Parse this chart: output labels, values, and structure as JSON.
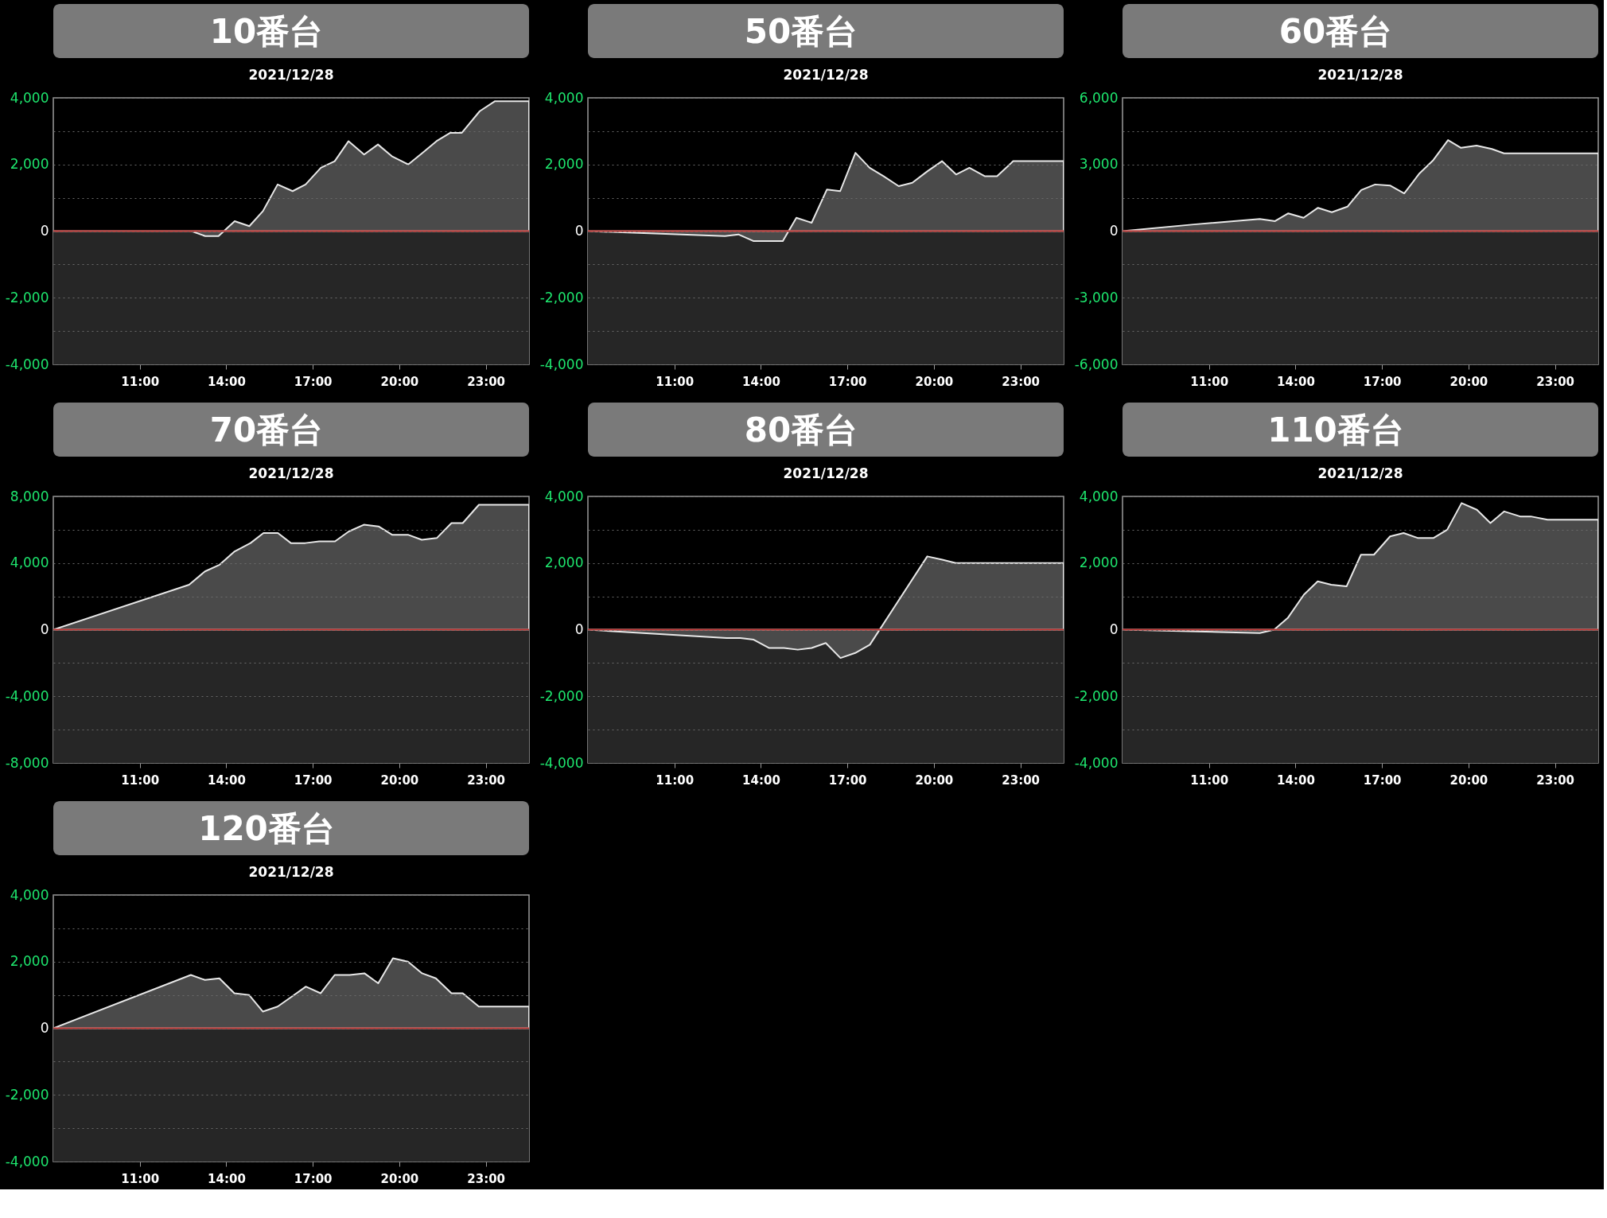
{
  "chart_data": [
    {
      "type": "area",
      "title": "10番台",
      "subtitle": "2021/12/28",
      "color": "#4a4a4a",
      "grid": "y",
      "x": [
        8.0,
        12.79,
        13.27,
        13.73,
        14.29,
        14.8,
        15.27,
        15.78,
        16.3,
        16.75,
        17.28,
        17.76,
        18.24,
        18.78,
        19.26,
        19.74,
        20.31,
        20.81,
        21.29,
        21.77,
        22.17,
        22.79,
        23.32,
        24.5
      ],
      "values": [
        0,
        0,
        -150,
        -150,
        300,
        150,
        600,
        1400,
        1200,
        1400,
        1900,
        2100,
        2700,
        2300,
        2600,
        2250,
        2000,
        2350,
        2700,
        2950,
        2950,
        3600,
        3900,
        3900
      ],
      "xlim": [
        8,
        24.5
      ],
      "xticks": [
        {
          "value": 11,
          "label": "11:00"
        },
        {
          "value": 14,
          "label": "14:00"
        },
        {
          "value": 17,
          "label": "17:00"
        },
        {
          "value": 20,
          "label": "20:00"
        },
        {
          "value": 23,
          "label": "23:00"
        }
      ],
      "ylim": [
        -4000,
        4000
      ],
      "yticks": [
        {
          "value": -4000,
          "label": "-4,000"
        },
        {
          "value": -3000,
          "label": null
        },
        {
          "value": -2000,
          "label": "-2,000"
        },
        {
          "value": -1000,
          "label": null
        },
        {
          "value": 0,
          "label": "0"
        },
        {
          "value": 1000,
          "label": null
        },
        {
          "value": 2000,
          "label": "2,000"
        },
        {
          "value": 3000,
          "label": null
        },
        {
          "value": 4000,
          "label": "4,000"
        }
      ],
      "ref_lines": [
        {
          "axis": "y",
          "value": 0,
          "color": "#b8312f"
        }
      ],
      "bands": [
        {
          "axis": "y",
          "from": -4000,
          "to": 0,
          "color": "#262626"
        }
      ]
    },
    {
      "type": "area",
      "title": "50番台",
      "subtitle": "2021/12/28",
      "color": "#4a4a4a",
      "grid": "y",
      "x": [
        8.0,
        12.75,
        13.22,
        13.75,
        14.76,
        15.23,
        15.76,
        16.29,
        16.75,
        17.28,
        17.77,
        18.25,
        18.78,
        19.25,
        19.78,
        20.28,
        20.77,
        21.23,
        21.76,
        22.19,
        22.75,
        24.5
      ],
      "values": [
        0,
        -150,
        -100,
        -300,
        -300,
        400,
        250,
        1250,
        1200,
        2350,
        1900,
        1650,
        1350,
        1450,
        1800,
        2100,
        1700,
        1900,
        1650,
        1650,
        2100,
        2100
      ],
      "xlim": [
        8,
        24.5
      ],
      "xticks": [
        {
          "value": 11,
          "label": "11:00"
        },
        {
          "value": 14,
          "label": "14:00"
        },
        {
          "value": 17,
          "label": "17:00"
        },
        {
          "value": 20,
          "label": "20:00"
        },
        {
          "value": 23,
          "label": "23:00"
        }
      ],
      "ylim": [
        -4000,
        4000
      ],
      "yticks": [
        {
          "value": -4000,
          "label": "-4,000"
        },
        {
          "value": -3000,
          "label": null
        },
        {
          "value": -2000,
          "label": "-2,000"
        },
        {
          "value": -1000,
          "label": null
        },
        {
          "value": 0,
          "label": "0"
        },
        {
          "value": 1000,
          "label": null
        },
        {
          "value": 2000,
          "label": "2,000"
        },
        {
          "value": 3000,
          "label": null
        },
        {
          "value": 4000,
          "label": "4,000"
        }
      ],
      "ref_lines": [
        {
          "axis": "y",
          "value": 0,
          "color": "#b8312f"
        }
      ],
      "bands": [
        {
          "axis": "y",
          "from": -4000,
          "to": 0,
          "color": "#262626"
        }
      ]
    },
    {
      "type": "area",
      "title": "60番台",
      "subtitle": "2021/12/28",
      "color": "#4a4a4a",
      "grid": "y",
      "x": [
        8.0,
        10.47,
        12.76,
        13.29,
        13.75,
        14.28,
        14.78,
        15.26,
        15.8,
        16.28,
        16.76,
        17.29,
        17.77,
        18.3,
        18.78,
        19.29,
        19.74,
        20.28,
        20.81,
        21.23,
        24.5
      ],
      "values": [
        0,
        300,
        550,
        450,
        800,
        600,
        1050,
        850,
        1100,
        1850,
        2100,
        2050,
        1700,
        2600,
        3200,
        4100,
        3750,
        3850,
        3700,
        3500,
        3500
      ],
      "xlim": [
        8,
        24.5
      ],
      "xticks": [
        {
          "value": 11,
          "label": "11:00"
        },
        {
          "value": 14,
          "label": "14:00"
        },
        {
          "value": 17,
          "label": "17:00"
        },
        {
          "value": 20,
          "label": "20:00"
        },
        {
          "value": 23,
          "label": "23:00"
        }
      ],
      "ylim": [
        -6000,
        6000
      ],
      "yticks": [
        {
          "value": -6000,
          "label": "-6,000"
        },
        {
          "value": -4500,
          "label": null
        },
        {
          "value": -3000,
          "label": "-3,000"
        },
        {
          "value": -1500,
          "label": null
        },
        {
          "value": 0,
          "label": "0"
        },
        {
          "value": 1500,
          "label": null
        },
        {
          "value": 3000,
          "label": "3,000"
        },
        {
          "value": 4500,
          "label": null
        },
        {
          "value": 6000,
          "label": "6,000"
        }
      ],
      "ref_lines": [
        {
          "axis": "y",
          "value": 0,
          "color": "#b8312f"
        }
      ],
      "bands": [
        {
          "axis": "y",
          "from": -6000,
          "to": 0,
          "color": "#262626"
        }
      ]
    },
    {
      "type": "area",
      "title": "70番台",
      "subtitle": "2021/12/28",
      "color": "#4a4a4a",
      "grid": "y",
      "x": [
        8.0,
        12.71,
        13.26,
        13.77,
        14.29,
        14.84,
        15.29,
        15.79,
        16.24,
        16.74,
        17.22,
        17.77,
        18.25,
        18.77,
        19.28,
        19.75,
        20.3,
        20.78,
        21.3,
        21.81,
        22.2,
        22.76,
        24.5
      ],
      "values": [
        0,
        2700,
        3500,
        3900,
        4700,
        5200,
        5800,
        5800,
        5200,
        5200,
        5300,
        5300,
        5900,
        6300,
        6200,
        5700,
        5700,
        5400,
        5500,
        6400,
        6400,
        7500,
        7500
      ],
      "xlim": [
        8,
        24.5
      ],
      "xticks": [
        {
          "value": 11,
          "label": "11:00"
        },
        {
          "value": 14,
          "label": "14:00"
        },
        {
          "value": 17,
          "label": "17:00"
        },
        {
          "value": 20,
          "label": "20:00"
        },
        {
          "value": 23,
          "label": "23:00"
        }
      ],
      "ylim": [
        -8000,
        8000
      ],
      "yticks": [
        {
          "value": -8000,
          "label": "-8,000"
        },
        {
          "value": -6000,
          "label": null
        },
        {
          "value": -4000,
          "label": "-4,000"
        },
        {
          "value": -2000,
          "label": null
        },
        {
          "value": 0,
          "label": "0"
        },
        {
          "value": 2000,
          "label": null
        },
        {
          "value": 4000,
          "label": "4,000"
        },
        {
          "value": 6000,
          "label": null
        },
        {
          "value": 8000,
          "label": "8,000"
        }
      ],
      "ref_lines": [
        {
          "axis": "y",
          "value": 0,
          "color": "#b8312f"
        }
      ],
      "bands": [
        {
          "axis": "y",
          "from": -8000,
          "to": 0,
          "color": "#262626"
        }
      ]
    },
    {
      "type": "area",
      "title": "80番台",
      "subtitle": "2021/12/28",
      "color": "#4a4a4a",
      "grid": "y",
      "x": [
        8.0,
        12.81,
        13.29,
        13.75,
        14.29,
        14.8,
        15.28,
        15.76,
        16.25,
        16.76,
        17.27,
        17.78,
        19.77,
        20.29,
        20.76,
        24.5
      ],
      "values": [
        0,
        -250,
        -250,
        -300,
        -550,
        -550,
        -600,
        -550,
        -400,
        -850,
        -700,
        -450,
        2200,
        2100,
        2000,
        2000
      ],
      "xlim": [
        8,
        24.5
      ],
      "xticks": [
        {
          "value": 11,
          "label": "11:00"
        },
        {
          "value": 14,
          "label": "14:00"
        },
        {
          "value": 17,
          "label": "17:00"
        },
        {
          "value": 20,
          "label": "20:00"
        },
        {
          "value": 23,
          "label": "23:00"
        }
      ],
      "ylim": [
        -4000,
        4000
      ],
      "yticks": [
        {
          "value": -4000,
          "label": "-4,000"
        },
        {
          "value": -3000,
          "label": null
        },
        {
          "value": -2000,
          "label": "-2,000"
        },
        {
          "value": -1000,
          "label": null
        },
        {
          "value": 0,
          "label": "0"
        },
        {
          "value": 1000,
          "label": null
        },
        {
          "value": 2000,
          "label": "2,000"
        },
        {
          "value": 3000,
          "label": null
        },
        {
          "value": 4000,
          "label": "4,000"
        }
      ],
      "ref_lines": [
        {
          "axis": "y",
          "value": 0,
          "color": "#b8312f"
        }
      ],
      "bands": [
        {
          "axis": "y",
          "from": -4000,
          "to": 0,
          "color": "#262626"
        }
      ]
    },
    {
      "type": "area",
      "title": "110番台",
      "subtitle": "2021/12/28",
      "color": "#4a4a4a",
      "grid": "y",
      "x": [
        8.0,
        12.76,
        13.26,
        13.73,
        14.29,
        14.77,
        15.24,
        15.77,
        16.27,
        16.72,
        17.28,
        17.75,
        18.25,
        18.78,
        19.26,
        19.76,
        20.29,
        20.76,
        21.24,
        21.79,
        22.16,
        22.74,
        24.5
      ],
      "values": [
        0,
        -100,
        0,
        350,
        1050,
        1450,
        1350,
        1300,
        2250,
        2250,
        2800,
        2900,
        2750,
        2750,
        3000,
        3800,
        3600,
        3200,
        3550,
        3400,
        3400,
        3300,
        3300
      ],
      "xlim": [
        8,
        24.5
      ],
      "xticks": [
        {
          "value": 11,
          "label": "11:00"
        },
        {
          "value": 14,
          "label": "14:00"
        },
        {
          "value": 17,
          "label": "17:00"
        },
        {
          "value": 20,
          "label": "20:00"
        },
        {
          "value": 23,
          "label": "23:00"
        }
      ],
      "ylim": [
        -4000,
        4000
      ],
      "yticks": [
        {
          "value": -4000,
          "label": "-4,000"
        },
        {
          "value": -3000,
          "label": null
        },
        {
          "value": -2000,
          "label": "-2,000"
        },
        {
          "value": -1000,
          "label": null
        },
        {
          "value": 0,
          "label": "0"
        },
        {
          "value": 1000,
          "label": null
        },
        {
          "value": 2000,
          "label": "2,000"
        },
        {
          "value": 3000,
          "label": null
        },
        {
          "value": 4000,
          "label": "4,000"
        }
      ],
      "ref_lines": [
        {
          "axis": "y",
          "value": 0,
          "color": "#b8312f"
        }
      ],
      "bands": [
        {
          "axis": "y",
          "from": -4000,
          "to": 0,
          "color": "#262626"
        }
      ]
    },
    {
      "type": "area",
      "title": "120番台",
      "subtitle": "2021/12/28",
      "color": "#4a4a4a",
      "grid": "y",
      "x": [
        8.0,
        12.77,
        13.26,
        13.76,
        14.28,
        14.79,
        15.27,
        15.78,
        16.27,
        16.76,
        17.27,
        17.76,
        18.28,
        18.79,
        19.27,
        19.78,
        20.3,
        20.79,
        21.27,
        21.81,
        22.2,
        22.76,
        24.5
      ],
      "values": [
        0,
        1600,
        1450,
        1500,
        1050,
        1000,
        500,
        650,
        950,
        1250,
        1050,
        1600,
        1600,
        1650,
        1350,
        2100,
        2000,
        1650,
        1500,
        1050,
        1050,
        650,
        650
      ],
      "xlim": [
        8,
        24.5
      ],
      "xticks": [
        {
          "value": 11,
          "label": "11:00"
        },
        {
          "value": 14,
          "label": "14:00"
        },
        {
          "value": 17,
          "label": "17:00"
        },
        {
          "value": 20,
          "label": "20:00"
        },
        {
          "value": 23,
          "label": "23:00"
        }
      ],
      "ylim": [
        -4000,
        4000
      ],
      "yticks": [
        {
          "value": -4000,
          "label": "-4,000"
        },
        {
          "value": -3000,
          "label": null
        },
        {
          "value": -2000,
          "label": "-2,000"
        },
        {
          "value": -1000,
          "label": null
        },
        {
          "value": 0,
          "label": "0"
        },
        {
          "value": 1000,
          "label": null
        },
        {
          "value": 2000,
          "label": "2,000"
        },
        {
          "value": 3000,
          "label": null
        },
        {
          "value": 4000,
          "label": "4,000"
        }
      ],
      "ref_lines": [
        {
          "axis": "y",
          "value": 0,
          "color": "#b8312f"
        }
      ],
      "bands": [
        {
          "axis": "y",
          "from": -4000,
          "to": 0,
          "color": "#262626"
        }
      ]
    }
  ]
}
